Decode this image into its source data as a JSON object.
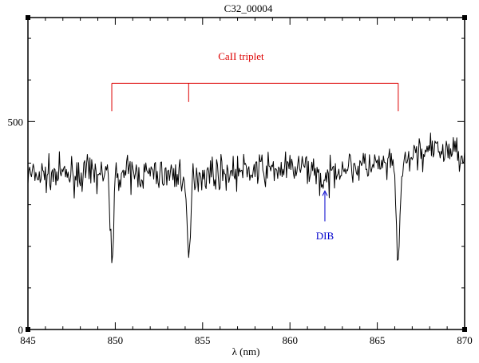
{
  "title": "C32_00004",
  "chart_data": {
    "type": "line",
    "title": "C32_00004",
    "xlabel": "λ (nm)",
    "ylabel": "",
    "xlim": [
      845,
      870
    ],
    "ylim": [
      0,
      750
    ],
    "xticks": [
      845,
      850,
      855,
      860,
      865,
      870
    ],
    "yticks": [
      {
        "value": 0,
        "label": "0"
      },
      {
        "value": 500,
        "label": "500"
      }
    ],
    "grid": false,
    "series": [
      {
        "color": "#000000",
        "seed": 7,
        "continuum": [
          [
            845.0,
            370
          ],
          [
            847.0,
            372
          ],
          [
            850.0,
            375
          ],
          [
            853.0,
            372
          ],
          [
            856.0,
            376
          ],
          [
            858.0,
            382
          ],
          [
            860.0,
            386
          ],
          [
            862.0,
            390
          ],
          [
            864.0,
            392
          ],
          [
            866.5,
            393
          ],
          [
            867.2,
            425
          ],
          [
            868.0,
            428
          ],
          [
            869.0,
            430
          ],
          [
            870.0,
            425
          ]
        ],
        "noise": 19,
        "absorption_lines": [
          {
            "center": 849.8,
            "depth": 190,
            "width": 0.1
          },
          {
            "center": 854.2,
            "depth": 210,
            "width": 0.11
          },
          {
            "center": 862.0,
            "depth": 40,
            "width": 0.3
          },
          {
            "center": 866.2,
            "depth": 215,
            "width": 0.11
          }
        ],
        "samples": 500
      }
    ],
    "annotations": [
      {
        "id": "caii",
        "type": "bracket",
        "label": "CaII triplet",
        "color": "#dd0000",
        "x_positions": [
          849.8,
          854.2,
          866.2
        ],
        "y_top": 592,
        "y_bottom": 525,
        "label_x": 857.2,
        "label_y": 648
      },
      {
        "id": "dib",
        "type": "arrow",
        "label": "DIB",
        "color": "#0000cc",
        "x": 862.0,
        "y_from": 260,
        "y_to": 333,
        "label_x": 862.0,
        "label_y": 217
      }
    ]
  }
}
